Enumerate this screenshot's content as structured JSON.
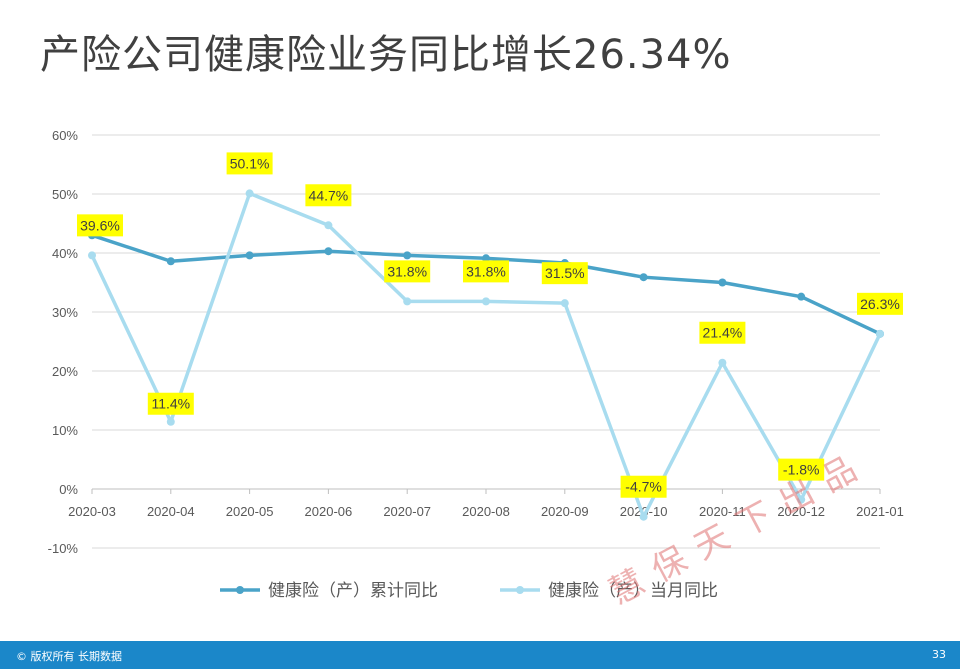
{
  "page": {
    "title": "产险公司健康险业务同比增长26.34%",
    "footer_left": "© 版权所有 长期数据",
    "page_number": "33",
    "stamp": "慧保天下出品"
  },
  "colors": {
    "cumulative": "#4aa3c8",
    "monthly": "#a8dcef",
    "label_bg": "#ffff00",
    "grid": "#d9d9d9",
    "footer": "#1b87c9"
  },
  "chart_data": {
    "type": "line",
    "categories": [
      "2020-03",
      "2020-04",
      "2020-05",
      "2020-06",
      "2020-07",
      "2020-08",
      "2020-09",
      "2020-10",
      "2020-11",
      "2020-12",
      "2021-01"
    ],
    "series": [
      {
        "name": "健康险（产）累计同比",
        "values": [
          43.0,
          38.6,
          39.6,
          40.3,
          39.6,
          39.1,
          38.3,
          35.9,
          35.0,
          32.6,
          26.3
        ]
      },
      {
        "name": "健康险（产）当月同比",
        "values": [
          39.6,
          11.4,
          50.1,
          44.7,
          31.8,
          31.8,
          31.5,
          -4.7,
          21.4,
          -1.8,
          26.3
        ]
      }
    ],
    "data_labels": [
      "39.6%",
      "11.4%",
      "50.1%",
      "44.7%",
      "31.8%",
      "31.8%",
      "31.5%",
      "-4.7%",
      "21.4%",
      "-1.8%",
      "26.3%"
    ],
    "y_ticks": [
      "60%",
      "50%",
      "40%",
      "30%",
      "20%",
      "10%",
      "0%",
      "-10%"
    ],
    "y_tick_values": [
      60,
      50,
      40,
      30,
      20,
      10,
      0,
      -10
    ],
    "ylim": [
      -10,
      60
    ],
    "legend_position": "bottom",
    "grid": true
  }
}
